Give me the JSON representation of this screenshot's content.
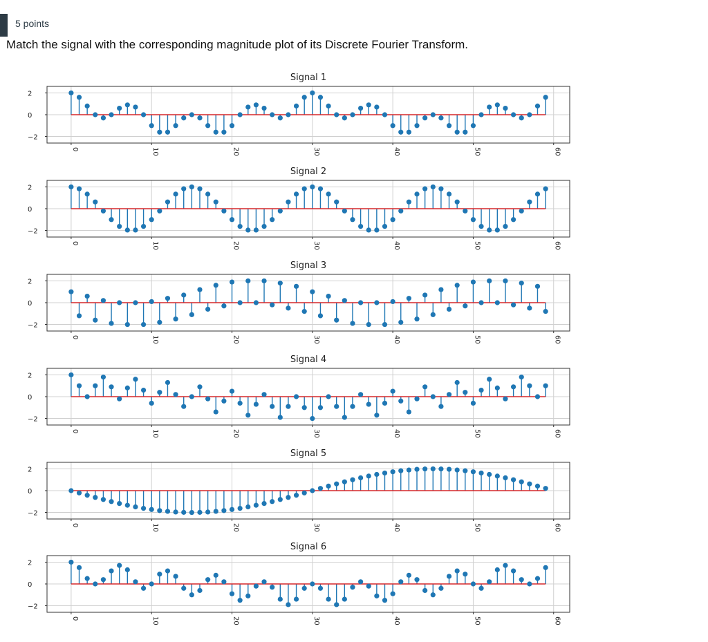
{
  "question": {
    "points": "5 points",
    "prompt": "Match the signal with the corresponding magnitude plot of its Discrete Fourier Transform."
  },
  "colors": {
    "stem": "#1f77b4",
    "baseline": "#d62728",
    "grid": "#d0d0d0",
    "frame": "#333333"
  },
  "chart_data": [
    {
      "type": "stem",
      "title": "Signal 1",
      "x": [
        0,
        1,
        2,
        3,
        4,
        5,
        6,
        7,
        8,
        9,
        10,
        11,
        12,
        13,
        14,
        15,
        16,
        17,
        18,
        19,
        20,
        21,
        22,
        23,
        24,
        25,
        26,
        27,
        28,
        29,
        30,
        31,
        32,
        33,
        34,
        35,
        36,
        37,
        38,
        39,
        40,
        41,
        42,
        43,
        44,
        45,
        46,
        47,
        48,
        49,
        50,
        51,
        52,
        53,
        54,
        55,
        56,
        57,
        58,
        59
      ],
      "values": [
        2.0,
        1.6,
        0.8,
        0.0,
        -0.3,
        0.0,
        0.6,
        0.9,
        0.7,
        0.0,
        -1.0,
        -1.6,
        -1.6,
        -1.0,
        -0.3,
        0.0,
        -0.3,
        -1.0,
        -1.6,
        -1.6,
        -1.0,
        0.0,
        0.7,
        0.9,
        0.6,
        0.0,
        -0.3,
        0.0,
        0.8,
        1.6,
        2.0,
        1.6,
        0.8,
        0.0,
        -0.3,
        0.0,
        0.6,
        0.9,
        0.7,
        0.0,
        -1.0,
        -1.6,
        -1.6,
        -1.0,
        -0.3,
        0.0,
        -0.3,
        -1.0,
        -1.6,
        -1.6,
        -1.0,
        0.0,
        0.7,
        0.9,
        0.6,
        0.0,
        -0.3,
        0.0,
        0.8,
        1.6
      ],
      "xlim": [
        -3,
        62
      ],
      "ylim": [
        -2.6,
        2.6
      ],
      "xticks": [
        0,
        10,
        20,
        30,
        40,
        50,
        60
      ],
      "yticks": [
        2,
        0,
        -2
      ],
      "grid": true
    },
    {
      "type": "stem",
      "title": "Signal 2",
      "x": [
        0,
        1,
        2,
        3,
        4,
        5,
        6,
        7,
        8,
        9,
        10,
        11,
        12,
        13,
        14,
        15,
        16,
        17,
        18,
        19,
        20,
        21,
        22,
        23,
        24,
        25,
        26,
        27,
        28,
        29,
        30,
        31,
        32,
        33,
        34,
        35,
        36,
        37,
        38,
        39,
        40,
        41,
        42,
        43,
        44,
        45,
        46,
        47,
        48,
        49,
        50,
        51,
        52,
        53,
        54,
        55,
        56,
        57,
        58,
        59
      ],
      "values": [
        2.0,
        1.83,
        1.34,
        0.62,
        -0.21,
        -1.0,
        -1.62,
        -1.96,
        -1.96,
        -1.62,
        -1.0,
        -0.21,
        0.62,
        1.34,
        1.83,
        2.0,
        1.83,
        1.34,
        0.62,
        -0.21,
        -1.0,
        -1.62,
        -1.96,
        -1.96,
        -1.62,
        -1.0,
        -0.21,
        0.62,
        1.34,
        1.83,
        2.0,
        1.83,
        1.34,
        0.62,
        -0.21,
        -1.0,
        -1.62,
        -1.96,
        -1.96,
        -1.62,
        -1.0,
        -0.21,
        0.62,
        1.34,
        1.83,
        2.0,
        1.83,
        1.34,
        0.62,
        -0.21,
        -1.0,
        -1.62,
        -1.96,
        -1.96,
        -1.62,
        -1.0,
        -0.21,
        0.62,
        1.34,
        1.83
      ],
      "xlim": [
        -3,
        62
      ],
      "ylim": [
        -2.6,
        2.6
      ],
      "xticks": [
        0,
        10,
        20,
        30,
        40,
        50,
        60
      ],
      "yticks": [
        2,
        0,
        -2
      ],
      "grid": true
    },
    {
      "type": "stem",
      "title": "Signal 3",
      "x": [
        0,
        1,
        2,
        3,
        4,
        5,
        6,
        7,
        8,
        9,
        10,
        11,
        12,
        13,
        14,
        15,
        16,
        17,
        18,
        19,
        20,
        21,
        22,
        23,
        24,
        25,
        26,
        27,
        28,
        29,
        30,
        31,
        32,
        33,
        34,
        35,
        36,
        37,
        38,
        39,
        40,
        41,
        42,
        43,
        44,
        45,
        46,
        47,
        48,
        49,
        50,
        51,
        52,
        53,
        54,
        55,
        56,
        57,
        58,
        59
      ],
      "values": [
        1.0,
        -1.2,
        0.6,
        -1.6,
        0.2,
        -1.9,
        0.0,
        -2.0,
        0.0,
        -2.0,
        0.1,
        -1.8,
        0.4,
        -1.5,
        0.7,
        -1.1,
        1.2,
        -0.6,
        1.6,
        -0.3,
        1.9,
        0.0,
        2.0,
        0.0,
        2.0,
        -0.2,
        1.8,
        -0.5,
        1.5,
        -0.8,
        1.0,
        -1.2,
        0.6,
        -1.6,
        0.2,
        -1.9,
        0.0,
        -2.0,
        0.0,
        -2.0,
        0.1,
        -1.8,
        0.4,
        -1.5,
        0.7,
        -1.1,
        1.2,
        -0.6,
        1.6,
        -0.3,
        1.9,
        0.0,
        2.0,
        0.0,
        2.0,
        -0.2,
        1.8,
        -0.5,
        1.5,
        -0.8
      ],
      "xlim": [
        -3,
        62
      ],
      "ylim": [
        -2.6,
        2.6
      ],
      "xticks": [
        0,
        10,
        20,
        30,
        40,
        50,
        60
      ],
      "yticks": [
        2,
        0,
        -2
      ],
      "grid": true
    },
    {
      "type": "stem",
      "title": "Signal 4",
      "x": [
        0,
        1,
        2,
        3,
        4,
        5,
        6,
        7,
        8,
        9,
        10,
        11,
        12,
        13,
        14,
        15,
        16,
        17,
        18,
        19,
        20,
        21,
        22,
        23,
        24,
        25,
        26,
        27,
        28,
        29,
        30,
        31,
        32,
        33,
        34,
        35,
        36,
        37,
        38,
        39,
        40,
        41,
        42,
        43,
        44,
        45,
        46,
        47,
        48,
        49,
        50,
        51,
        52,
        53,
        54,
        55,
        56,
        57,
        58,
        59
      ],
      "values": [
        2.0,
        1.0,
        0.0,
        1.0,
        1.8,
        0.9,
        -0.2,
        0.8,
        1.6,
        0.6,
        -0.6,
        0.4,
        1.3,
        0.2,
        -0.9,
        0.0,
        0.9,
        -0.2,
        -1.4,
        -0.4,
        0.5,
        -0.6,
        -1.7,
        -0.7,
        0.2,
        -0.9,
        -1.9,
        -0.9,
        0.0,
        -1.0,
        -2.0,
        -1.0,
        0.0,
        -0.9,
        -1.9,
        -0.9,
        0.2,
        -0.7,
        -1.7,
        -0.6,
        0.5,
        -0.4,
        -1.4,
        -0.2,
        0.9,
        0.0,
        -0.9,
        0.2,
        1.3,
        0.4,
        -0.6,
        0.6,
        1.6,
        0.8,
        -0.2,
        0.9,
        1.8,
        1.0,
        0.0,
        1.0
      ],
      "xlim": [
        -3,
        62
      ],
      "ylim": [
        -2.6,
        2.6
      ],
      "xticks": [
        0,
        10,
        20,
        30,
        40,
        50,
        60
      ],
      "yticks": [
        2,
        0,
        -2
      ],
      "grid": true
    },
    {
      "type": "stem",
      "title": "Signal 5",
      "x": [
        0,
        1,
        2,
        3,
        4,
        5,
        6,
        7,
        8,
        9,
        10,
        11,
        12,
        13,
        14,
        15,
        16,
        17,
        18,
        19,
        20,
        21,
        22,
        23,
        24,
        25,
        26,
        27,
        28,
        29,
        30,
        31,
        32,
        33,
        34,
        35,
        36,
        37,
        38,
        39,
        40,
        41,
        42,
        43,
        44,
        45,
        46,
        47,
        48,
        49,
        50,
        51,
        52,
        53,
        54,
        55,
        56,
        57,
        58,
        59
      ],
      "values": [
        0.0,
        -0.21,
        -0.42,
        -0.62,
        -0.81,
        -1.0,
        -1.18,
        -1.34,
        -1.49,
        -1.62,
        -1.73,
        -1.83,
        -1.9,
        -1.96,
        -1.99,
        -2.0,
        -1.99,
        -1.96,
        -1.9,
        -1.83,
        -1.73,
        -1.62,
        -1.49,
        -1.34,
        -1.18,
        -1.0,
        -0.81,
        -0.62,
        -0.42,
        -0.21,
        0.0,
        0.21,
        0.42,
        0.62,
        0.81,
        1.0,
        1.18,
        1.34,
        1.49,
        1.62,
        1.73,
        1.83,
        1.9,
        1.96,
        1.99,
        2.0,
        1.99,
        1.96,
        1.9,
        1.83,
        1.73,
        1.62,
        1.49,
        1.34,
        1.18,
        1.0,
        0.81,
        0.62,
        0.42,
        0.21
      ],
      "xlim": [
        -3,
        62
      ],
      "ylim": [
        -2.6,
        2.6
      ],
      "xticks": [
        0,
        10,
        20,
        30,
        40,
        50,
        60
      ],
      "yticks": [
        2,
        0,
        -2
      ],
      "grid": true
    },
    {
      "type": "stem",
      "title": "Signal 6",
      "x": [
        0,
        1,
        2,
        3,
        4,
        5,
        6,
        7,
        8,
        9,
        10,
        11,
        12,
        13,
        14,
        15,
        16,
        17,
        18,
        19,
        20,
        21,
        22,
        23,
        24,
        25,
        26,
        27,
        28,
        29,
        30,
        31,
        32,
        33,
        34,
        35,
        36,
        37,
        38,
        39,
        40,
        41,
        42,
        43,
        44,
        45,
        46,
        47,
        48,
        49,
        50,
        51,
        52,
        53,
        54,
        55,
        56,
        57,
        58,
        59
      ],
      "values": [
        2.0,
        1.5,
        0.5,
        0.0,
        0.4,
        1.2,
        1.7,
        1.3,
        0.2,
        -0.4,
        0.0,
        0.9,
        1.2,
        0.7,
        -0.4,
        -1.0,
        -0.6,
        0.4,
        0.8,
        0.2,
        -0.9,
        -1.5,
        -1.1,
        -0.2,
        0.2,
        -0.3,
        -1.4,
        -1.9,
        -1.4,
        -0.4,
        0.0,
        -0.4,
        -1.4,
        -1.9,
        -1.4,
        -0.3,
        0.2,
        -0.2,
        -1.1,
        -1.5,
        -0.9,
        0.2,
        0.8,
        0.4,
        -0.6,
        -1.0,
        -0.4,
        0.7,
        1.2,
        0.9,
        0.0,
        -0.4,
        0.2,
        1.3,
        1.7,
        1.2,
        0.4,
        0.0,
        0.5,
        1.5
      ],
      "xlim": [
        -3,
        62
      ],
      "ylim": [
        -2.6,
        2.6
      ],
      "xticks": [
        0,
        10,
        20,
        30,
        40,
        50,
        60
      ],
      "yticks": [
        2,
        0,
        -2
      ],
      "grid": true
    }
  ]
}
